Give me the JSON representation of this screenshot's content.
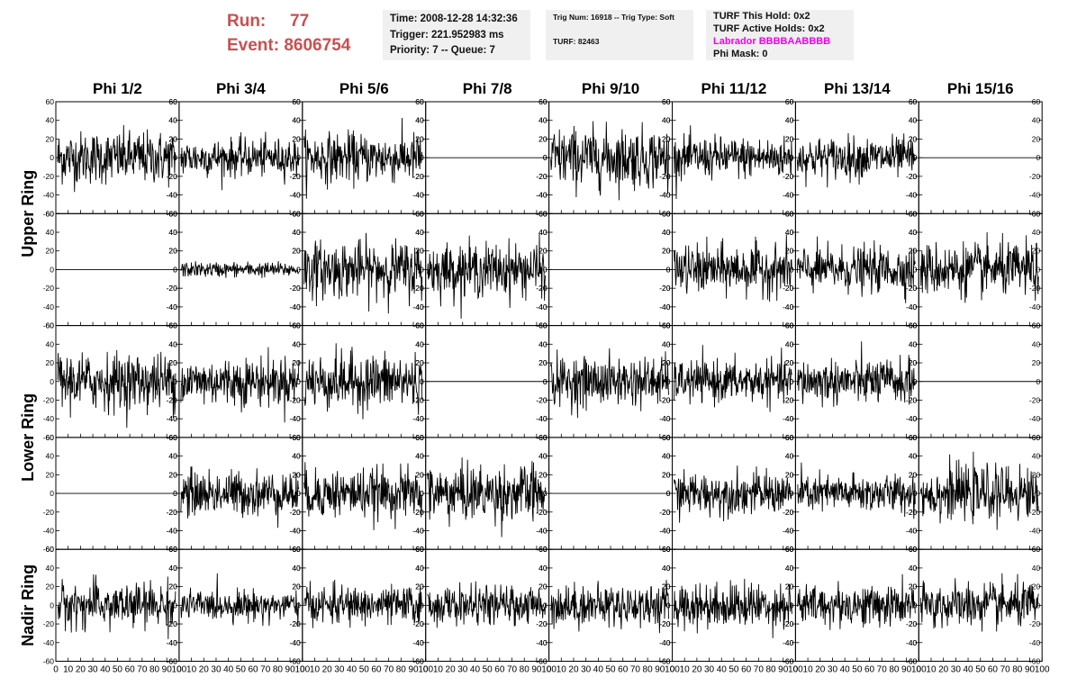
{
  "header": {
    "run_label": "Run:",
    "run_value": "77",
    "event_label": "Event:",
    "event_value": "8606754"
  },
  "info_time": {
    "time": "Time: 2008-12-28 14:32:36",
    "trigger": "Trigger: 221.952983 ms",
    "priority": "Priority: 7 -- Queue: 7"
  },
  "info_trig": {
    "trig": "Trig Num: 16918 -- Trig Type: Soft",
    "turf": "TURF: 82463"
  },
  "info_turf": {
    "this_hold": "TURF This Hold: 0x2",
    "active_holds": "TURF Active Holds: 0x2",
    "labrador": "Labrador BBBBAABBBB",
    "phi_mask": "Phi Mask: 0"
  },
  "colors": {
    "accent_run": "#c85050",
    "labrador": "#ee00ee",
    "box_bg": "#f0f0f0",
    "trace": "#000000"
  },
  "chart_data": {
    "type": "line",
    "columns": [
      "Phi 1/2",
      "Phi 3/4",
      "Phi 5/6",
      "Phi 7/8",
      "Phi 9/10",
      "Phi 11/12",
      "Phi 13/14",
      "Phi 15/16"
    ],
    "row_groups": [
      "Upper Ring",
      "Lower Ring",
      "Nadir Ring"
    ],
    "ylim": [
      -60,
      60
    ],
    "xlim": [
      0,
      100
    ],
    "y_ticks": [
      -60,
      -40,
      -20,
      0,
      20,
      40,
      60
    ],
    "x_ticks": [
      0,
      10,
      20,
      30,
      40,
      50,
      60,
      70,
      80,
      90,
      100
    ],
    "points_per_trace": 260,
    "amplitude_rms": [
      [
        14,
        10,
        13,
        0,
        16,
        11,
        11,
        0
      ],
      [
        0,
        4,
        15,
        14,
        0,
        13,
        12,
        14
      ],
      [
        15,
        13,
        15,
        0,
        13,
        11,
        12,
        0
      ],
      [
        0,
        12,
        13,
        15,
        0,
        11,
        10,
        14
      ],
      [
        12,
        8,
        10,
        10,
        11,
        12,
        11,
        12
      ]
    ]
  }
}
